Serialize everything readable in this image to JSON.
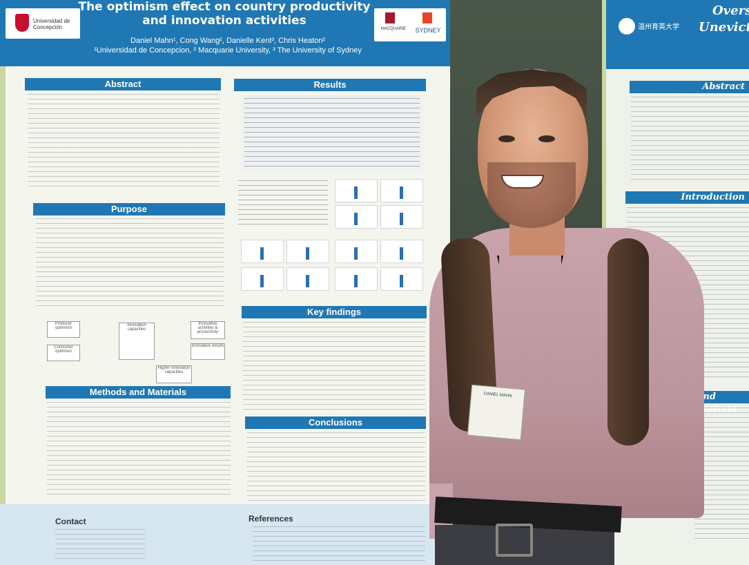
{
  "poster": {
    "title": "The optimism effect on country productivity and innovation activities",
    "authors": "Daniel Mahn¹, Cong Wang², Danielle Kent³, Chris Heaton²",
    "affiliations": "¹Universidad de Concepcion, ² Macquarie University, ³ The University of Sydney",
    "logo_left": "Universidad de Concepción",
    "logo_right_1": "MACQUARIE",
    "logo_right_2": "SYDNEY",
    "sections": {
      "abstract": "Abstract",
      "purpose": "Purpose",
      "methods": "Methods and Materials",
      "results": "Results",
      "key_findings": "Key findings",
      "conclusions": "Conclusions",
      "contact": "Contact",
      "references": "References"
    },
    "diagram": {
      "producer": "Producer optimism",
      "consumer": "Consumer optimism",
      "innovation": "Innovation capacities",
      "activities": "Innovative activities & productivity",
      "results": "Innovative results",
      "capacities": "Higher innovation capacities"
    },
    "badge": "DANIEL MAHN"
  },
  "poster2": {
    "title_1": "Overs",
    "title_2": "Unevicta",
    "logo": "温州育英大学",
    "abstract": "Abstract",
    "introduction": "Introduction",
    "methods": "and Materia"
  }
}
